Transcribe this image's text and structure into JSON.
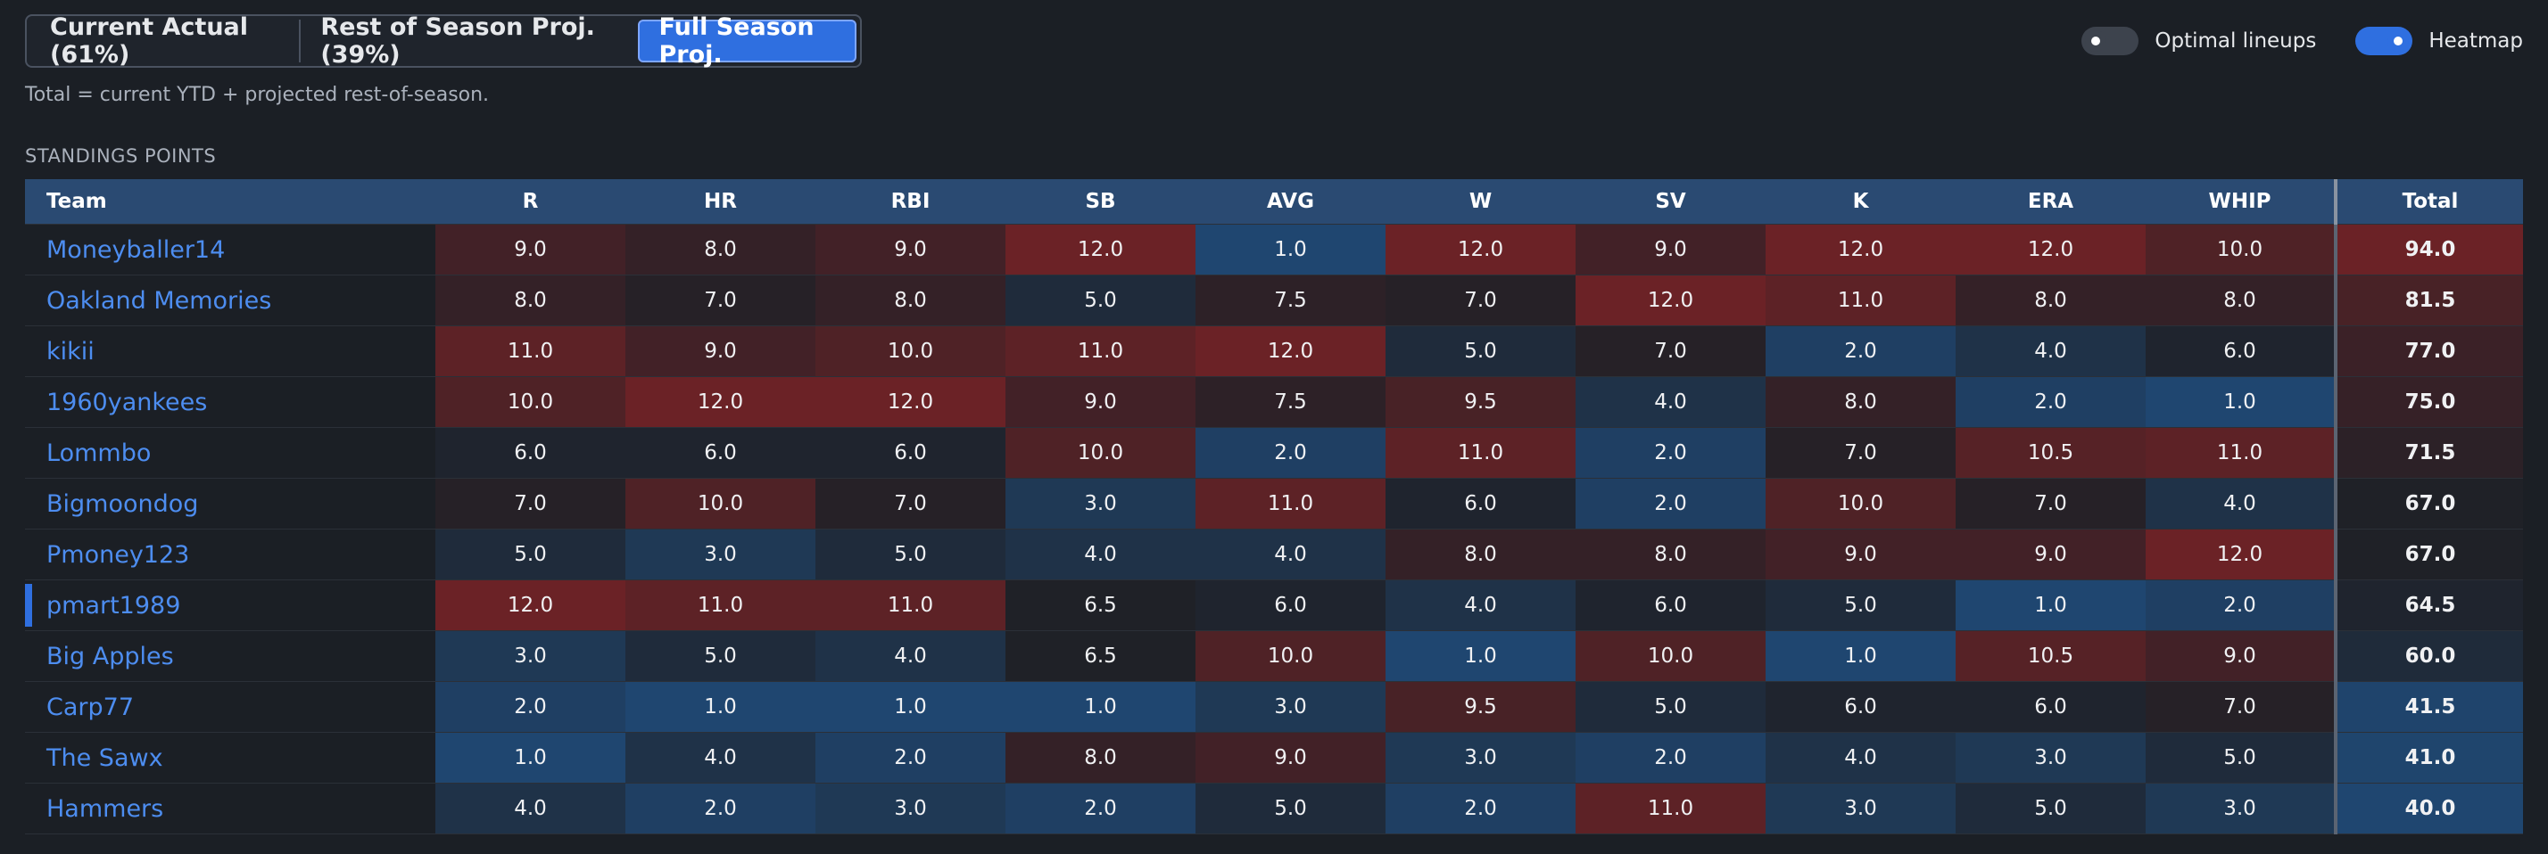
{
  "view_tabs": [
    "Current Actual (61%)",
    "Rest of Season Proj. (39%)",
    "Full Season Proj."
  ],
  "active_tab": "Full Season Proj.",
  "note": "Total = current YTD + projected rest-of-season.",
  "toggles": [
    {
      "label": "Optimal lineups",
      "on": false
    },
    {
      "label": "Heatmap",
      "on": true
    }
  ],
  "section_title": "STANDINGS POINTS",
  "columns": [
    "Team",
    "R",
    "HR",
    "RBI",
    "SB",
    "AVG",
    "W",
    "SV",
    "K",
    "ERA",
    "WHIP",
    "Total"
  ],
  "rows": [
    {
      "team": "Moneyballer14",
      "values": [
        "9.0",
        "8.0",
        "9.0",
        "12.0",
        "1.0",
        "12.0",
        "9.0",
        "12.0",
        "12.0",
        "10.0"
      ],
      "total": "94.0"
    },
    {
      "team": "Oakland Memories",
      "values": [
        "8.0",
        "7.0",
        "8.0",
        "5.0",
        "7.5",
        "7.0",
        "12.0",
        "11.0",
        "8.0",
        "8.0"
      ],
      "total": "81.5"
    },
    {
      "team": "kikii",
      "values": [
        "11.0",
        "9.0",
        "10.0",
        "11.0",
        "12.0",
        "5.0",
        "7.0",
        "2.0",
        "4.0",
        "6.0"
      ],
      "total": "77.0"
    },
    {
      "team": "1960yankees",
      "values": [
        "10.0",
        "12.0",
        "12.0",
        "9.0",
        "7.5",
        "9.5",
        "4.0",
        "8.0",
        "2.0",
        "1.0"
      ],
      "total": "75.0"
    },
    {
      "team": "Lommbo",
      "values": [
        "6.0",
        "6.0",
        "6.0",
        "10.0",
        "2.0",
        "11.0",
        "2.0",
        "7.0",
        "10.5",
        "11.0"
      ],
      "total": "71.5"
    },
    {
      "team": "Bigmoondog",
      "values": [
        "7.0",
        "10.0",
        "7.0",
        "3.0",
        "11.0",
        "6.0",
        "2.0",
        "10.0",
        "7.0",
        "4.0"
      ],
      "total": "67.0"
    },
    {
      "team": "Pmoney123",
      "values": [
        "5.0",
        "3.0",
        "5.0",
        "4.0",
        "4.0",
        "8.0",
        "8.0",
        "9.0",
        "9.0",
        "12.0"
      ],
      "total": "67.0"
    },
    {
      "team": "pmart1989",
      "highlight": true,
      "values": [
        "12.0",
        "11.0",
        "11.0",
        "6.5",
        "6.0",
        "4.0",
        "6.0",
        "5.0",
        "1.0",
        "2.0"
      ],
      "total": "64.5"
    },
    {
      "team": "Big Apples",
      "values": [
        "3.0",
        "5.0",
        "4.0",
        "6.5",
        "10.0",
        "1.0",
        "10.0",
        "1.0",
        "10.5",
        "9.0"
      ],
      "total": "60.0"
    },
    {
      "team": "Carp77",
      "values": [
        "2.0",
        "1.0",
        "1.0",
        "1.0",
        "3.0",
        "9.5",
        "5.0",
        "6.0",
        "6.0",
        "7.0"
      ],
      "total": "41.5"
    },
    {
      "team": "The Sawx",
      "values": [
        "1.0",
        "4.0",
        "2.0",
        "8.0",
        "9.0",
        "3.0",
        "2.0",
        "4.0",
        "3.0",
        "5.0"
      ],
      "total": "41.0"
    },
    {
      "team": "Hammers",
      "values": [
        "4.0",
        "2.0",
        "3.0",
        "2.0",
        "5.0",
        "2.0",
        "11.0",
        "3.0",
        "5.0",
        "3.0"
      ],
      "total": "40.0"
    }
  ],
  "colors": {
    "accent": "#2f6fe0",
    "header": "#2a4a72",
    "heat_high": "#6b2226",
    "heat_low": "#1f4670",
    "heat_mid": "#1f2127"
  }
}
